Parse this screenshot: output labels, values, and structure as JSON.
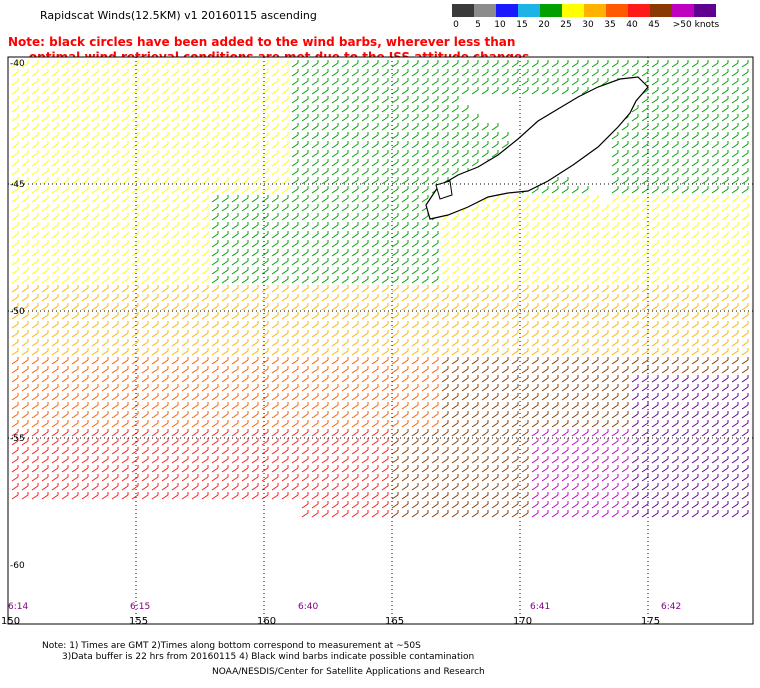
{
  "title": "Rapidscat Winds(12.5KM) v1 20160115 ascending",
  "note": {
    "line1": "Note: black circles have been added to the wind barbs, wherever less than",
    "line2": "optimal wind retrieval conditions are met due to the ISS attitude changes.",
    "color": "#ff0000"
  },
  "colorbar": {
    "labels": [
      "0",
      "5",
      "10",
      "15",
      "20",
      "25",
      "30",
      "35",
      "40",
      "45",
      ">50 knots"
    ],
    "colors": [
      "#3a3a3a",
      "#8c8c8c",
      "#1a1aff",
      "#1db3e6",
      "#00a000",
      "#ffff00",
      "#ffb300",
      "#ff5a00",
      "#ff1a1a",
      "#8a3a00",
      "#c000c0",
      "#600090"
    ]
  },
  "map": {
    "lat_labels": [
      "-40",
      "-45",
      "-50",
      "-55",
      "-60"
    ],
    "lon_labels": [
      "150",
      "155",
      "160",
      "165",
      "170",
      "175"
    ],
    "time_labels": [
      "6:14",
      "6:15",
      "6:40",
      "6:41",
      "6:42"
    ],
    "time_color": "#800080"
  },
  "footer": {
    "line1": "Note: 1) Times are GMT 2)Times along bottom correspond to measurement at ~50S",
    "line2": "3)Data buffer is 22 hrs from 20160115 4) Black wind barbs indicate possible contamination",
    "credit": "NOAA/NESDIS/Center for Satellite Applications and Research"
  }
}
